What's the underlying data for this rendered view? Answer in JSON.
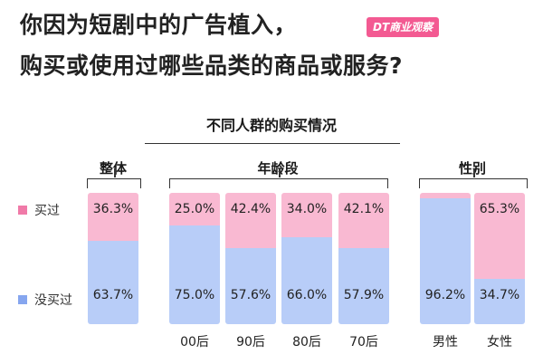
{
  "headline": {
    "line1": "你因为短剧中的广告植入，",
    "line2": "购买或使用过哪些品类的商品或服务?"
  },
  "logo_text": "DT商业观察",
  "colors": {
    "bought": "#f9b9d2",
    "not_bought": "#b8cdf8",
    "bought_legend": "#f07aa8",
    "not_bought_legend": "#86a6ef"
  },
  "chart_data": {
    "type": "bar",
    "stacked": true,
    "normalized_percent": true,
    "title": "不同人群的购买情况",
    "groups": [
      {
        "name": "整体",
        "categories": [
          ""
        ]
      },
      {
        "name": "年龄段",
        "categories": [
          "00后",
          "90后",
          "80后",
          "70后"
        ]
      },
      {
        "name": "性别",
        "categories": [
          "男性",
          "女性"
        ]
      }
    ],
    "categories": [
      "",
      "00后",
      "90后",
      "80后",
      "70后",
      "男性",
      "女性"
    ],
    "series": [
      {
        "name": "买过",
        "values": [
          36.3,
          25.0,
          42.4,
          34.0,
          42.1,
          null,
          65.3
        ],
        "labels": [
          "36.3%",
          "25.0%",
          "42.4%",
          "34.0%",
          "42.1%",
          "",
          "65.3%"
        ]
      },
      {
        "name": "没买过",
        "values": [
          63.7,
          75.0,
          57.6,
          66.0,
          57.9,
          96.2,
          34.7
        ],
        "labels": [
          "63.7%",
          "75.0%",
          "57.6%",
          "66.0%",
          "57.9%",
          "96.2%",
          "34.7%"
        ]
      }
    ],
    "ylim": [
      0,
      100
    ],
    "legend_position": "left"
  }
}
